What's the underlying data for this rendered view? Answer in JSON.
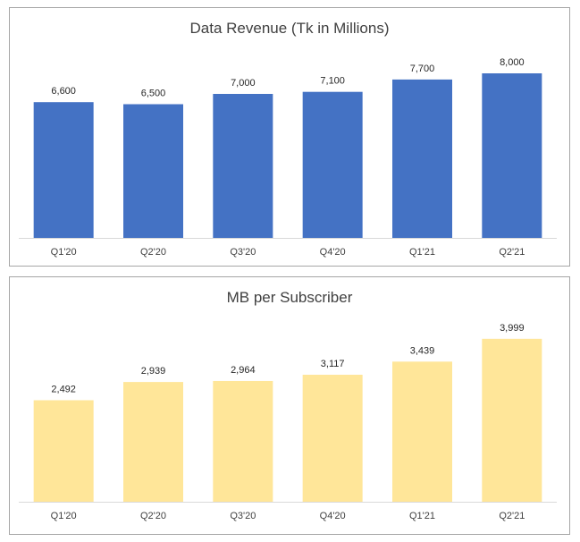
{
  "chart_data": [
    {
      "type": "bar",
      "title": "Data Revenue (Tk in Millions)",
      "categories": [
        "Q1'20",
        "Q2'20",
        "Q3'20",
        "Q4'20",
        "Q1'21",
        "Q2'21"
      ],
      "values": [
        6600,
        6500,
        7000,
        7100,
        7700,
        8000
      ],
      "data_labels": [
        "6,600",
        "6,500",
        "7,000",
        "7,100",
        "7,700",
        "8,000"
      ],
      "ylim": [
        0,
        9000
      ],
      "grid": false,
      "bar_color": "#4472c4"
    },
    {
      "type": "bar",
      "title": "MB per Subscriber",
      "categories": [
        "Q1'20",
        "Q2'20",
        "Q3'20",
        "Q4'20",
        "Q1'21",
        "Q2'21"
      ],
      "values": [
        2492,
        2939,
        2964,
        3117,
        3439,
        3999
      ],
      "data_labels": [
        "2,492",
        "2,939",
        "2,964",
        "3,117",
        "3,439",
        "3,999"
      ],
      "ylim": [
        0,
        4500
      ],
      "grid": false,
      "bar_color": "#ffe699"
    }
  ]
}
